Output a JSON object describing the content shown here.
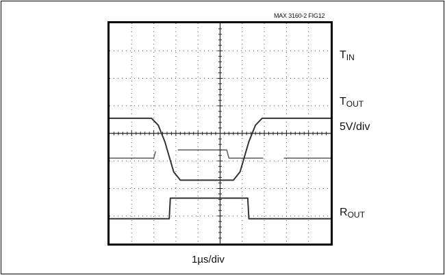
{
  "figure_id": "MAX 3160-2 FIG12",
  "chart_data": {
    "type": "line",
    "title": "",
    "xlabel": "1µs/div",
    "ylabel": "",
    "grid": true,
    "x_divisions": 10,
    "y_divisions": 8,
    "vertical_scale_label": "5V/div",
    "colors": {
      "trace": "#333333",
      "axes": "#000000",
      "grid": "#555555"
    },
    "channels": [
      {
        "name_main": "T",
        "name_sub": "IN"
      },
      {
        "name_main": "T",
        "name_sub": "OUT"
      },
      {
        "name_main": "R",
        "name_sub": "OUT"
      }
    ],
    "series": [
      {
        "x": [
          0,
          2.0,
          2.1,
          5.3,
          5.4,
          10
        ],
        "y": [
          3.1,
          3.1,
          3.4,
          3.4,
          3.1,
          3.1
        ]
      },
      {
        "x": [
          0,
          1.9,
          2.2,
          2.5,
          2.9,
          3.2,
          5.6,
          5.9,
          6.3,
          6.6,
          6.9,
          10
        ],
        "y": [
          4.55,
          4.55,
          4.3,
          3.7,
          2.6,
          2.3,
          2.3,
          2.6,
          3.7,
          4.3,
          4.55,
          4.55
        ]
      },
      {
        "x": [
          0,
          2.7,
          2.75,
          6.25,
          6.3,
          10
        ],
        "y": [
          0.9,
          0.9,
          1.65,
          1.65,
          0.9,
          0.9
        ]
      }
    ]
  }
}
